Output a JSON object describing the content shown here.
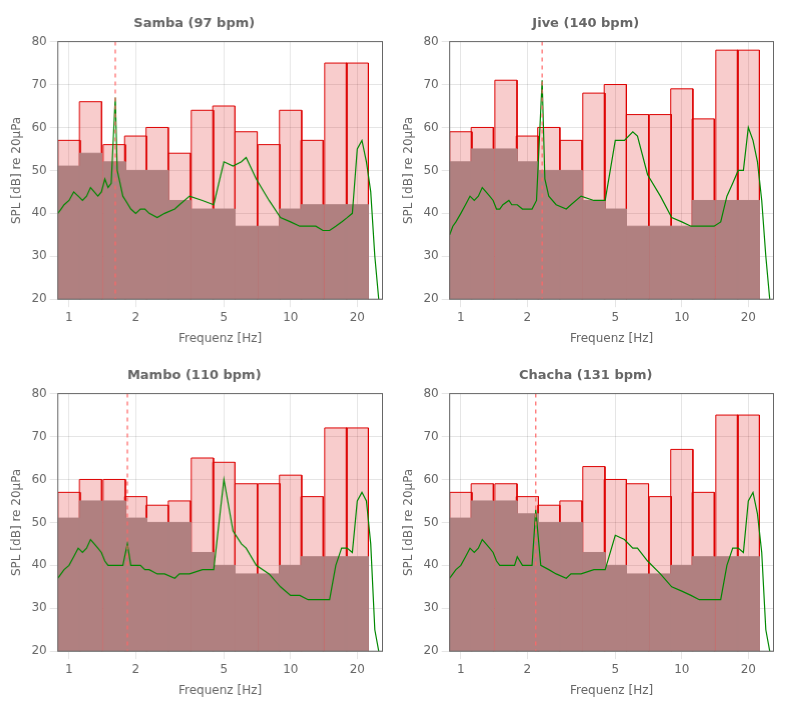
{
  "chart_data": [
    {
      "type": "bar",
      "title": "Samba (97 bpm)",
      "x_label": "Frequenz [Hz]",
      "y_label": "SPL [dB] re 20µPa",
      "log": "x",
      "xlim": [
        0.89,
        26
      ],
      "xticks": [
        1,
        2,
        5,
        10,
        20
      ],
      "ylim": [
        20,
        80
      ],
      "yticks": [
        20,
        30,
        40,
        50,
        60,
        70,
        80
      ],
      "series": [
        {
          "type": "bar",
          "color": "#dd0000",
          "x": [
            1.0,
            1.25,
            1.6,
            2.0,
            2.5,
            3.15,
            4.0,
            5.0,
            6.3,
            8.0,
            10.0,
            12.5,
            16.0,
            20.0
          ],
          "values": [
            57,
            66,
            56,
            58,
            60,
            54,
            64,
            65,
            59,
            56,
            64,
            57,
            75,
            75
          ]
        },
        {
          "type": "bar",
          "color": "#b08080",
          "x": [
            1.0,
            1.25,
            1.6,
            2.0,
            2.5,
            3.15,
            4.0,
            5.0,
            6.3,
            8.0,
            10.0,
            12.5,
            16.0,
            20.0
          ],
          "values": [
            51,
            54,
            52,
            50,
            50,
            43,
            41,
            41,
            37,
            37,
            41,
            42,
            42,
            42
          ]
        },
        {
          "type": "line",
          "color": "#008800",
          "x": [
            0.89,
            0.92,
            0.95,
            1.0,
            1.05,
            1.1,
            1.15,
            1.2,
            1.25,
            1.3,
            1.35,
            1.4,
            1.45,
            1.5,
            1.55,
            1.617,
            1.65,
            1.7,
            1.75,
            1.8,
            1.9,
            2.0,
            2.1,
            2.2,
            2.3,
            2.5,
            2.7,
            3.0,
            3.15,
            3.5,
            4.0,
            4.5,
            5.0,
            5.5,
            6.0,
            6.3,
            7.0,
            8.0,
            9.0,
            10.0,
            11.0,
            12.0,
            13.0,
            14.0,
            15.0,
            16.0,
            17.0,
            18.0,
            19.0,
            20.0,
            21.0,
            22.0,
            23.0,
            24.0,
            25.0
          ],
          "values": [
            40,
            41,
            42,
            43,
            45,
            44,
            43,
            44,
            46,
            45,
            44,
            45,
            48,
            46,
            47,
            67,
            50,
            47,
            44,
            43,
            41,
            40,
            41,
            41,
            40,
            39,
            40,
            41,
            42,
            44,
            43,
            42,
            52,
            51,
            52,
            53,
            48,
            43,
            39,
            38,
            37,
            37,
            37,
            36,
            36,
            37,
            38,
            39,
            40,
            55,
            57,
            52,
            45,
            30,
            20
          ]
        },
        {
          "type": "vline",
          "color": "#ff6666",
          "line_style": "dashed",
          "x": [
            1.617
          ]
        }
      ]
    },
    {
      "type": "bar",
      "title": "Jive (140 bpm)",
      "x_label": "Frequenz [Hz]",
      "y_label": "SPL [dB] re 20µPa",
      "log": "x",
      "xlim": [
        0.89,
        26
      ],
      "xticks": [
        1,
        2,
        5,
        10,
        20
      ],
      "ylim": [
        20,
        80
      ],
      "yticks": [
        20,
        30,
        40,
        50,
        60,
        70,
        80
      ],
      "series": [
        {
          "type": "bar",
          "color": "#dd0000",
          "x": [
            1.0,
            1.25,
            1.6,
            2.0,
            2.5,
            3.15,
            4.0,
            5.0,
            6.3,
            8.0,
            10.0,
            12.5,
            16.0,
            20.0
          ],
          "values": [
            59,
            60,
            71,
            58,
            60,
            57,
            68,
            70,
            63,
            63,
            69,
            62,
            78,
            78
          ]
        },
        {
          "type": "bar",
          "color": "#b08080",
          "x": [
            1.0,
            1.25,
            1.6,
            2.0,
            2.5,
            3.15,
            4.0,
            5.0,
            6.3,
            8.0,
            10.0,
            12.5,
            16.0,
            20.0
          ],
          "values": [
            52,
            55,
            55,
            52,
            50,
            50,
            43,
            41,
            37,
            37,
            37,
            43,
            43,
            43
          ]
        },
        {
          "type": "line",
          "color": "#008800",
          "x": [
            0.89,
            0.92,
            0.95,
            1.0,
            1.05,
            1.1,
            1.15,
            1.2,
            1.25,
            1.3,
            1.35,
            1.4,
            1.45,
            1.5,
            1.55,
            1.65,
            1.7,
            1.75,
            1.8,
            1.9,
            2.0,
            2.1,
            2.2,
            2.333,
            2.4,
            2.5,
            2.7,
            3.0,
            3.15,
            3.5,
            4.0,
            4.5,
            5.0,
            5.5,
            6.0,
            6.3,
            7.0,
            8.0,
            9.0,
            10.0,
            11.0,
            12.0,
            13.0,
            14.0,
            15.0,
            16.0,
            17.0,
            18.0,
            19.0,
            20.0,
            21.0,
            22.0,
            23.0,
            24.0,
            25.0
          ],
          "values": [
            35,
            37,
            38,
            40,
            42,
            44,
            43,
            44,
            46,
            45,
            44,
            43,
            41,
            41,
            42,
            43,
            42,
            42,
            42,
            41,
            41,
            41,
            43,
            71,
            48,
            44,
            42,
            41,
            42,
            44,
            43,
            43,
            57,
            57,
            59,
            58,
            49,
            44,
            39,
            38,
            37,
            37,
            37,
            37,
            38,
            44,
            47,
            50,
            50,
            60,
            57,
            52,
            43,
            30,
            20
          ]
        },
        {
          "type": "vline",
          "color": "#ff6666",
          "line_style": "dashed",
          "x": [
            2.333
          ]
        }
      ]
    },
    {
      "type": "bar",
      "title": "Mambo (110 bpm)",
      "x_label": "Frequenz [Hz]",
      "y_label": "SPL [dB] re 20µPa",
      "log": "x",
      "xlim": [
        0.89,
        26
      ],
      "xticks": [
        1,
        2,
        5,
        10,
        20
      ],
      "ylim": [
        20,
        80
      ],
      "yticks": [
        20,
        30,
        40,
        50,
        60,
        70,
        80
      ],
      "series": [
        {
          "type": "bar",
          "color": "#dd0000",
          "x": [
            1.0,
            1.25,
            1.6,
            2.0,
            2.5,
            3.15,
            4.0,
            5.0,
            6.3,
            8.0,
            10.0,
            12.5,
            16.0,
            20.0
          ],
          "values": [
            57,
            60,
            60,
            56,
            54,
            55,
            65,
            64,
            59,
            59,
            61,
            56,
            72,
            72
          ]
        },
        {
          "type": "bar",
          "color": "#b08080",
          "x": [
            1.0,
            1.25,
            1.6,
            2.0,
            2.5,
            3.15,
            4.0,
            5.0,
            6.3,
            8.0,
            10.0,
            12.5,
            16.0,
            20.0
          ],
          "values": [
            51,
            55,
            55,
            51,
            50,
            50,
            43,
            40,
            38,
            38,
            40,
            42,
            42,
            42
          ]
        },
        {
          "type": "line",
          "color": "#008800",
          "x": [
            0.89,
            0.92,
            0.95,
            1.0,
            1.05,
            1.1,
            1.15,
            1.2,
            1.25,
            1.3,
            1.35,
            1.4,
            1.45,
            1.5,
            1.55,
            1.65,
            1.7,
            1.75,
            1.833,
            1.9,
            2.0,
            2.1,
            2.2,
            2.3,
            2.5,
            2.7,
            3.0,
            3.15,
            3.5,
            4.0,
            4.5,
            5.0,
            5.5,
            6.0,
            6.3,
            7.0,
            8.0,
            9.0,
            10.0,
            11.0,
            12.0,
            13.0,
            14.0,
            15.0,
            16.0,
            17.0,
            18.0,
            19.0,
            20.0,
            21.0,
            22.0,
            23.0,
            24.0,
            25.0
          ],
          "values": [
            37,
            38,
            39,
            40,
            42,
            44,
            43,
            44,
            46,
            45,
            44,
            43,
            41,
            40,
            40,
            40,
            40,
            40,
            45,
            40,
            40,
            40,
            39,
            39,
            38,
            38,
            37,
            38,
            38,
            39,
            39,
            60,
            48,
            45,
            44,
            40,
            38,
            35,
            33,
            33,
            32,
            32,
            32,
            32,
            40,
            44,
            44,
            43,
            55,
            57,
            55,
            45,
            25,
            20
          ]
        },
        {
          "type": "vline",
          "color": "#ff6666",
          "line_style": "dashed",
          "x": [
            1.833
          ]
        }
      ]
    },
    {
      "type": "bar",
      "title": "Chacha (131 bpm)",
      "x_label": "Frequenz [Hz]",
      "y_label": "SPL [dB] re 20µPa",
      "log": "x",
      "xlim": [
        0.89,
        26
      ],
      "xticks": [
        1,
        2,
        5,
        10,
        20
      ],
      "ylim": [
        20,
        80
      ],
      "yticks": [
        20,
        30,
        40,
        50,
        60,
        70,
        80
      ],
      "series": [
        {
          "type": "bar",
          "color": "#dd0000",
          "x": [
            1.0,
            1.25,
            1.6,
            2.0,
            2.5,
            3.15,
            4.0,
            5.0,
            6.3,
            8.0,
            10.0,
            12.5,
            16.0,
            20.0
          ],
          "values": [
            57,
            59,
            59,
            56,
            54,
            55,
            63,
            60,
            59,
            56,
            67,
            57,
            75,
            75
          ]
        },
        {
          "type": "bar",
          "color": "#b08080",
          "x": [
            1.0,
            1.25,
            1.6,
            2.0,
            2.5,
            3.15,
            4.0,
            5.0,
            6.3,
            8.0,
            10.0,
            12.5,
            16.0,
            20.0
          ],
          "values": [
            51,
            55,
            55,
            52,
            50,
            50,
            43,
            40,
            38,
            38,
            40,
            42,
            42,
            42
          ]
        },
        {
          "type": "line",
          "color": "#008800",
          "x": [
            0.89,
            0.92,
            0.95,
            1.0,
            1.05,
            1.1,
            1.15,
            1.2,
            1.25,
            1.3,
            1.35,
            1.4,
            1.45,
            1.5,
            1.55,
            1.65,
            1.7,
            1.75,
            1.8,
            1.9,
            2.0,
            2.1,
            2.183,
            2.3,
            2.5,
            2.7,
            3.0,
            3.15,
            3.5,
            4.0,
            4.5,
            5.0,
            5.5,
            6.0,
            6.3,
            7.0,
            8.0,
            9.0,
            10.0,
            11.0,
            12.0,
            13.0,
            14.0,
            15.0,
            16.0,
            17.0,
            18.0,
            19.0,
            20.0,
            21.0,
            22.0,
            23.0,
            24.0,
            25.0
          ],
          "values": [
            37,
            38,
            39,
            40,
            42,
            44,
            43,
            44,
            46,
            45,
            44,
            43,
            41,
            40,
            40,
            40,
            40,
            40,
            42,
            40,
            40,
            40,
            53,
            40,
            39,
            38,
            37,
            38,
            38,
            39,
            39,
            47,
            46,
            44,
            44,
            41,
            38,
            35,
            34,
            33,
            32,
            32,
            32,
            32,
            40,
            44,
            44,
            43,
            55,
            57,
            52,
            43,
            25,
            20
          ]
        },
        {
          "type": "vline",
          "color": "#ff6666",
          "line_style": "dashed",
          "x": [
            2.183
          ]
        }
      ]
    }
  ]
}
